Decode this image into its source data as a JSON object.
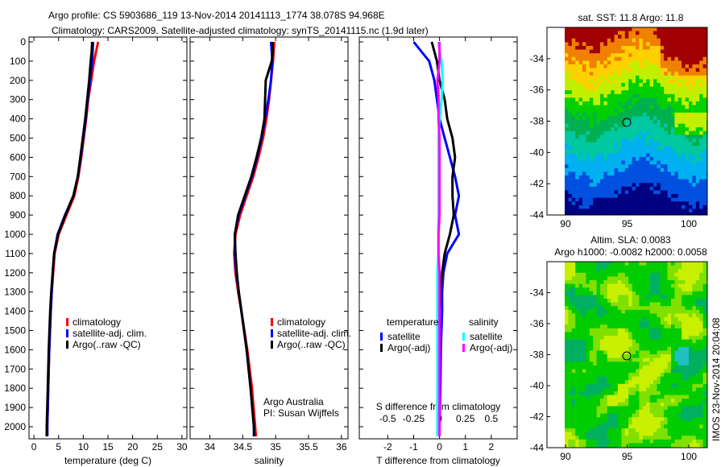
{
  "title_line1": "Argo profile: CS 5903686_119 13-Nov-2014 20141113_1774 38.078S 94.968E",
  "title_line2": "Climatology: CARS2009. Satellite-adjusted climatology: synTS_20141115.nc (1.9d later)",
  "credit": "Argo Australia",
  "pi": "PI: Susan Wijffels",
  "stamp": "IMOS 23-Nov-2014 20:04:08",
  "colors": {
    "climatology": "#ff0000",
    "satellite": "#0000ff",
    "argo": "#000000",
    "sal_sat": "#00ffff",
    "sal_argo": "#ff00ff"
  },
  "chart_data": [
    {
      "type": "line",
      "id": "temp",
      "xlabel": "temperature (deg C)",
      "ylabel": "",
      "xlim": [
        -1,
        31
      ],
      "ylim": [
        2070,
        0
      ],
      "xticks": [
        0,
        5,
        10,
        15,
        20,
        25,
        30
      ],
      "yticks": [
        0,
        100,
        200,
        300,
        400,
        500,
        600,
        700,
        800,
        900,
        1000,
        1100,
        1200,
        1300,
        1400,
        1500,
        1600,
        1700,
        1800,
        1900,
        2000
      ],
      "depth": [
        0,
        50,
        100,
        200,
        300,
        400,
        500,
        600,
        700,
        800,
        900,
        1000,
        1100,
        1200,
        1300,
        1400,
        1600,
        1800,
        2000,
        2050
      ],
      "series": [
        {
          "name": "climatology",
          "color": "climatology",
          "values": [
            13.0,
            12.6,
            12.2,
            11.6,
            11.0,
            10.6,
            10.1,
            9.6,
            9.0,
            8.2,
            6.6,
            5.0,
            4.2,
            3.9,
            3.6,
            3.4,
            3.1,
            2.9,
            2.7,
            2.7
          ]
        },
        {
          "name": "satellite-adj. clim.",
          "color": "satellite",
          "values": [
            12.0,
            11.9,
            11.8,
            11.4,
            10.9,
            10.5,
            10.0,
            9.5,
            8.9,
            8.0,
            6.3,
            4.8,
            4.1,
            3.8,
            3.6,
            3.4,
            3.1,
            2.9,
            2.7,
            2.7
          ]
        },
        {
          "name": "Argo(..raw -QC)",
          "color": "argo",
          "values": [
            11.8,
            11.7,
            11.5,
            11.2,
            10.8,
            10.4,
            9.9,
            9.4,
            8.9,
            8.0,
            6.4,
            4.9,
            4.1,
            3.8,
            3.5,
            3.3,
            3.0,
            2.8,
            2.6,
            2.6
          ]
        }
      ]
    },
    {
      "type": "line",
      "id": "sal",
      "xlabel": "salinity",
      "xlim": [
        33.7,
        36.1
      ],
      "ylim": [
        2070,
        0
      ],
      "xticks": [
        34,
        34.5,
        35,
        35.5,
        36
      ],
      "depth": [
        0,
        50,
        100,
        200,
        300,
        400,
        500,
        600,
        700,
        800,
        900,
        1000,
        1100,
        1200,
        1300,
        1400,
        1600,
        1800,
        2000,
        2050
      ],
      "series": [
        {
          "name": "climatology",
          "color": "climatology",
          "values": [
            34.98,
            34.97,
            34.96,
            34.93,
            34.9,
            34.86,
            34.81,
            34.74,
            34.66,
            34.56,
            34.46,
            34.39,
            34.37,
            34.39,
            34.43,
            34.48,
            34.57,
            34.64,
            34.69,
            34.7
          ]
        },
        {
          "name": "satellite-adj. clim.",
          "color": "satellite",
          "values": [
            34.93,
            34.94,
            34.95,
            34.93,
            34.89,
            34.84,
            34.79,
            34.72,
            34.64,
            34.54,
            34.44,
            34.38,
            34.38,
            34.4,
            34.44,
            34.48,
            34.56,
            34.62,
            34.67,
            34.68
          ]
        },
        {
          "name": "Argo(..raw -QC)",
          "color": "argo",
          "values": [
            34.95,
            34.96,
            34.94,
            34.85,
            34.84,
            34.83,
            34.78,
            34.71,
            34.63,
            34.53,
            34.43,
            34.38,
            34.39,
            34.41,
            34.44,
            34.48,
            34.56,
            34.62,
            34.67,
            34.67
          ]
        }
      ]
    },
    {
      "type": "line",
      "id": "diff",
      "xlabel": "T difference from climatology",
      "x2label": "S difference from climatology",
      "xlim": [
        -3.1,
        3.0
      ],
      "ylim": [
        2070,
        0
      ],
      "xticks": [
        -2,
        -1,
        0,
        1,
        2
      ],
      "x2ticks": [
        -0.5,
        -0.25,
        0,
        0.25,
        0.5
      ],
      "depth": [
        0,
        50,
        100,
        200,
        300,
        400,
        500,
        600,
        700,
        800,
        900,
        1000,
        1100,
        1200,
        1300,
        1400,
        1600,
        1800,
        2000,
        2050
      ],
      "series": [
        {
          "name": "temperature satellite",
          "color": "satellite",
          "unit": "T",
          "values": [
            -1.0,
            -0.7,
            -0.4,
            -0.2,
            -0.1,
            0.0,
            0.2,
            0.4,
            0.6,
            0.75,
            0.6,
            0.75,
            0.3,
            0.15,
            0.1,
            0.1,
            0.05,
            0.03,
            0.0,
            0.0
          ]
        },
        {
          "name": "temperature Argo(-adj)",
          "color": "argo",
          "unit": "T",
          "values": [
            -0.3,
            -0.2,
            -0.1,
            0.0,
            0.2,
            0.3,
            0.5,
            0.6,
            0.5,
            0.5,
            0.55,
            0.4,
            0.2,
            0.1,
            0.05,
            0.0,
            -0.03,
            -0.05,
            -0.05,
            -0.05
          ]
        },
        {
          "name": "salinity satellite",
          "color": "sal_sat",
          "unit": "S",
          "values": [
            -0.01,
            0.0,
            0.02,
            0.03,
            0.02,
            0.0,
            -0.01,
            -0.01,
            -0.01,
            -0.01,
            -0.01,
            -0.01,
            -0.01,
            -0.02,
            -0.02,
            -0.02,
            -0.02,
            -0.02,
            -0.02,
            -0.02
          ]
        },
        {
          "name": "salinity Argo(-adj)",
          "color": "sal_argo",
          "unit": "S",
          "values": [
            0.0,
            0.0,
            0.0,
            -0.02,
            -0.01,
            -0.01,
            0.0,
            0.0,
            0.0,
            0.0,
            0.0,
            -0.01,
            -0.01,
            0.0,
            0.0,
            0.0,
            0.0,
            0.0,
            0.0,
            0.0
          ]
        }
      ],
      "legend": {
        "temp_title": "temperature",
        "sal_title": "salinity",
        "items": [
          "satellite",
          "Argo(-adj)"
        ]
      }
    },
    {
      "type": "heatmap",
      "id": "sst",
      "title": "sat. SST: 11.8 Argo: 11.8",
      "xlim": [
        88.5,
        101.5
      ],
      "ylim": [
        -44,
        -32
      ],
      "xticks": [
        90,
        95,
        100
      ],
      "yticks": [
        -34,
        -36,
        -38,
        -40,
        -42,
        -44
      ],
      "marker": {
        "lon": 94.968,
        "lat": -38.078
      }
    },
    {
      "type": "heatmap",
      "id": "sla",
      "title": "Altim. SLA: 0.0083",
      "subtitle": "Argo h1000: -0.0082 h2000: 0.0058",
      "xlim": [
        88.5,
        101.5
      ],
      "ylim": [
        -44,
        -32
      ],
      "xticks": [
        90,
        95,
        100
      ],
      "yticks": [
        -34,
        -36,
        -38,
        -40,
        -42,
        -44
      ],
      "marker": {
        "lon": 94.968,
        "lat": -38.078
      }
    }
  ],
  "legend_profile": [
    "climatology",
    "satellite-adj. clim.",
    "Argo(..raw -QC)"
  ]
}
